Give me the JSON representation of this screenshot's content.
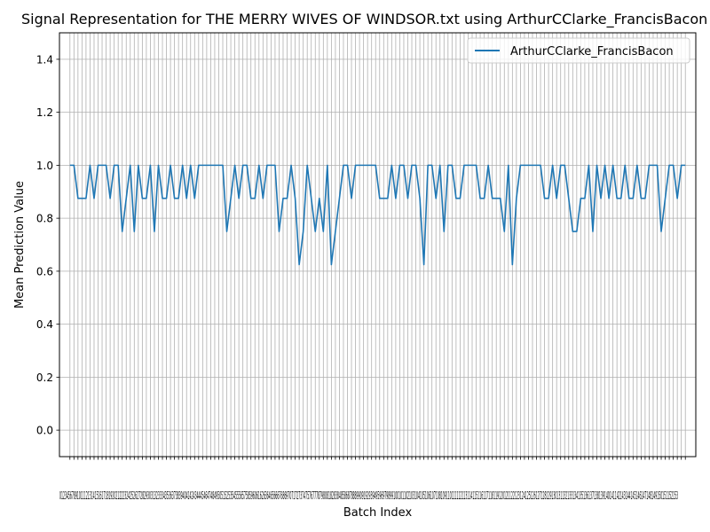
{
  "chart_data": {
    "type": "line",
    "title": "Signal Representation for THE MERRY WIVES OF WINDSOR.txt using ArthurCClarke_FrancisBacon",
    "xlabel": "Batch Index",
    "ylabel": "Mean Prediction Value",
    "ylim": [
      -0.1,
      1.5
    ],
    "xlim": [
      -2.6,
      155.6
    ],
    "yticks": [
      0.0,
      0.2,
      0.4,
      0.6,
      0.8,
      1.0,
      1.2,
      1.4
    ],
    "ytick_labels": [
      "0.0",
      "0.2",
      "0.4",
      "0.6",
      "0.8",
      "1.0",
      "1.2",
      "1.4"
    ],
    "xtick_label_text": "0123456789101112131415161718192021222324252627282930313233343536373839404142434445464748495051525354555657585960616263646566676869707172737475767778798081828384858687888990919293949596979899100101102103104105106107108109110111112113114115116117118119120121122123124125126127128129130131132133134135136137138139140141142143144145146147148149150151152153",
    "grid": true,
    "legend_position": "top-right",
    "series": [
      {
        "name": "ArthurCClarke_FrancisBacon",
        "color": "#1f77b4",
        "x_start": 0,
        "values": [
          1.0,
          1.0,
          0.875,
          0.875,
          0.875,
          1.0,
          0.875,
          1.0,
          1.0,
          1.0,
          0.875,
          1.0,
          1.0,
          0.75,
          0.875,
          1.0,
          0.75,
          1.0,
          0.875,
          0.875,
          1.0,
          0.75,
          1.0,
          0.875,
          0.875,
          1.0,
          0.875,
          0.875,
          1.0,
          0.875,
          1.0,
          0.875,
          1.0,
          1.0,
          1.0,
          1.0,
          1.0,
          1.0,
          1.0,
          0.75,
          0.875,
          1.0,
          0.875,
          1.0,
          1.0,
          0.875,
          0.875,
          1.0,
          0.875,
          1.0,
          1.0,
          1.0,
          0.75,
          0.875,
          0.875,
          1.0,
          0.875,
          0.625,
          0.75,
          1.0,
          0.875,
          0.75,
          0.875,
          0.75,
          1.0,
          0.625,
          0.75,
          0.875,
          1.0,
          1.0,
          0.875,
          1.0,
          1.0,
          1.0,
          1.0,
          1.0,
          1.0,
          0.875,
          0.875,
          0.875,
          1.0,
          0.875,
          1.0,
          1.0,
          0.875,
          1.0,
          1.0,
          0.875,
          0.625,
          1.0,
          1.0,
          0.875,
          1.0,
          0.75,
          1.0,
          1.0,
          0.875,
          0.875,
          1.0,
          1.0,
          1.0,
          1.0,
          0.875,
          0.875,
          1.0,
          0.875,
          0.875,
          0.875,
          0.75,
          1.0,
          0.625,
          0.875,
          1.0,
          1.0,
          1.0,
          1.0,
          1.0,
          1.0,
          0.875,
          0.875,
          1.0,
          0.875,
          1.0,
          1.0,
          0.875,
          0.75,
          0.75,
          0.875,
          0.875,
          1.0,
          0.75,
          1.0,
          0.875,
          1.0,
          0.875,
          1.0,
          0.875,
          0.875,
          1.0,
          0.875,
          0.875,
          1.0,
          0.875,
          0.875,
          1.0,
          1.0,
          1.0,
          0.75,
          0.875,
          1.0,
          1.0,
          0.875,
          1.0,
          1.0
        ]
      }
    ]
  }
}
